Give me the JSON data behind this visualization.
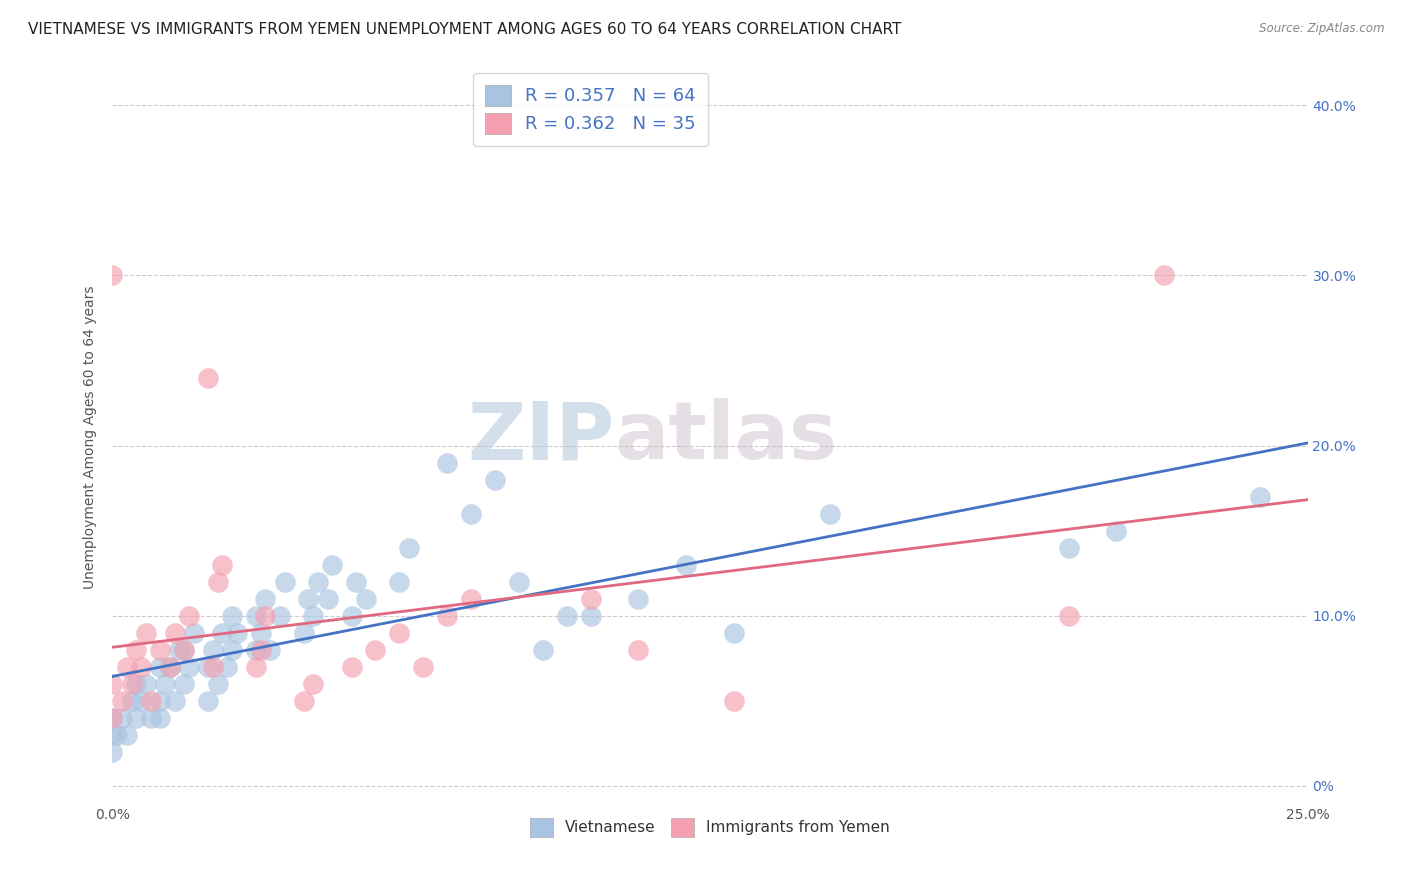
{
  "title": "VIETNAMESE VS IMMIGRANTS FROM YEMEN UNEMPLOYMENT AMONG AGES 60 TO 64 YEARS CORRELATION CHART",
  "source": "Source: ZipAtlas.com",
  "ylabel": "Unemployment Among Ages 60 to 64 years",
  "xlim": [
    0.0,
    0.25
  ],
  "ylim": [
    -0.01,
    0.42
  ],
  "xticks": [
    0.0,
    0.05,
    0.1,
    0.15,
    0.2,
    0.25
  ],
  "xticklabels_show": [
    "0.0%",
    "",
    "",
    "",
    "",
    "25.0%"
  ],
  "yticks": [
    0.0,
    0.1,
    0.2,
    0.3,
    0.4
  ],
  "yticklabels_right": [
    "0%",
    "10.0%",
    "20.0%",
    "30.0%",
    "40.0%"
  ],
  "R_vietnamese": 0.357,
  "N_vietnamese": 64,
  "R_yemen": 0.362,
  "N_yemen": 35,
  "color_vietnamese": "#a8c4e0",
  "color_yemen": "#f4a0b0",
  "line_color_vietnamese": "#4472c4",
  "line_color_yemen": "#e06880",
  "watermark_color": "#ccdcec",
  "background_color": "#ffffff",
  "title_fontsize": 11,
  "axis_label_fontsize": 10,
  "tick_fontsize": 10,
  "vietnamese_x": [
    0.0,
    0.0,
    0.0,
    0.001,
    0.002,
    0.003,
    0.004,
    0.005,
    0.005,
    0.006,
    0.007,
    0.008,
    0.01,
    0.01,
    0.01,
    0.011,
    0.012,
    0.013,
    0.014,
    0.015,
    0.015,
    0.016,
    0.017,
    0.02,
    0.02,
    0.021,
    0.022,
    0.023,
    0.024,
    0.025,
    0.025,
    0.026,
    0.03,
    0.03,
    0.031,
    0.032,
    0.033,
    0.035,
    0.036,
    0.04,
    0.041,
    0.042,
    0.043,
    0.045,
    0.046,
    0.05,
    0.051,
    0.053,
    0.06,
    0.062,
    0.07,
    0.075,
    0.08,
    0.085,
    0.09,
    0.095,
    0.1,
    0.11,
    0.12,
    0.13,
    0.15,
    0.2,
    0.21,
    0.24
  ],
  "vietnamese_y": [
    0.02,
    0.03,
    0.04,
    0.03,
    0.04,
    0.03,
    0.05,
    0.04,
    0.06,
    0.05,
    0.06,
    0.04,
    0.05,
    0.07,
    0.04,
    0.06,
    0.07,
    0.05,
    0.08,
    0.06,
    0.08,
    0.07,
    0.09,
    0.05,
    0.07,
    0.08,
    0.06,
    0.09,
    0.07,
    0.08,
    0.1,
    0.09,
    0.08,
    0.1,
    0.09,
    0.11,
    0.08,
    0.1,
    0.12,
    0.09,
    0.11,
    0.1,
    0.12,
    0.11,
    0.13,
    0.1,
    0.12,
    0.11,
    0.12,
    0.14,
    0.19,
    0.16,
    0.18,
    0.12,
    0.08,
    0.1,
    0.1,
    0.11,
    0.13,
    0.09,
    0.16,
    0.14,
    0.15,
    0.17
  ],
  "yemen_x": [
    0.0,
    0.0,
    0.0,
    0.002,
    0.003,
    0.004,
    0.005,
    0.006,
    0.007,
    0.008,
    0.01,
    0.012,
    0.013,
    0.015,
    0.016,
    0.02,
    0.021,
    0.022,
    0.023,
    0.03,
    0.031,
    0.032,
    0.04,
    0.042,
    0.05,
    0.055,
    0.06,
    0.065,
    0.07,
    0.075,
    0.1,
    0.11,
    0.13,
    0.2,
    0.22
  ],
  "yemen_y": [
    0.04,
    0.06,
    0.3,
    0.05,
    0.07,
    0.06,
    0.08,
    0.07,
    0.09,
    0.05,
    0.08,
    0.07,
    0.09,
    0.08,
    0.1,
    0.24,
    0.07,
    0.12,
    0.13,
    0.07,
    0.08,
    0.1,
    0.05,
    0.06,
    0.07,
    0.08,
    0.09,
    0.07,
    0.1,
    0.11,
    0.11,
    0.08,
    0.05,
    0.1,
    0.3
  ]
}
